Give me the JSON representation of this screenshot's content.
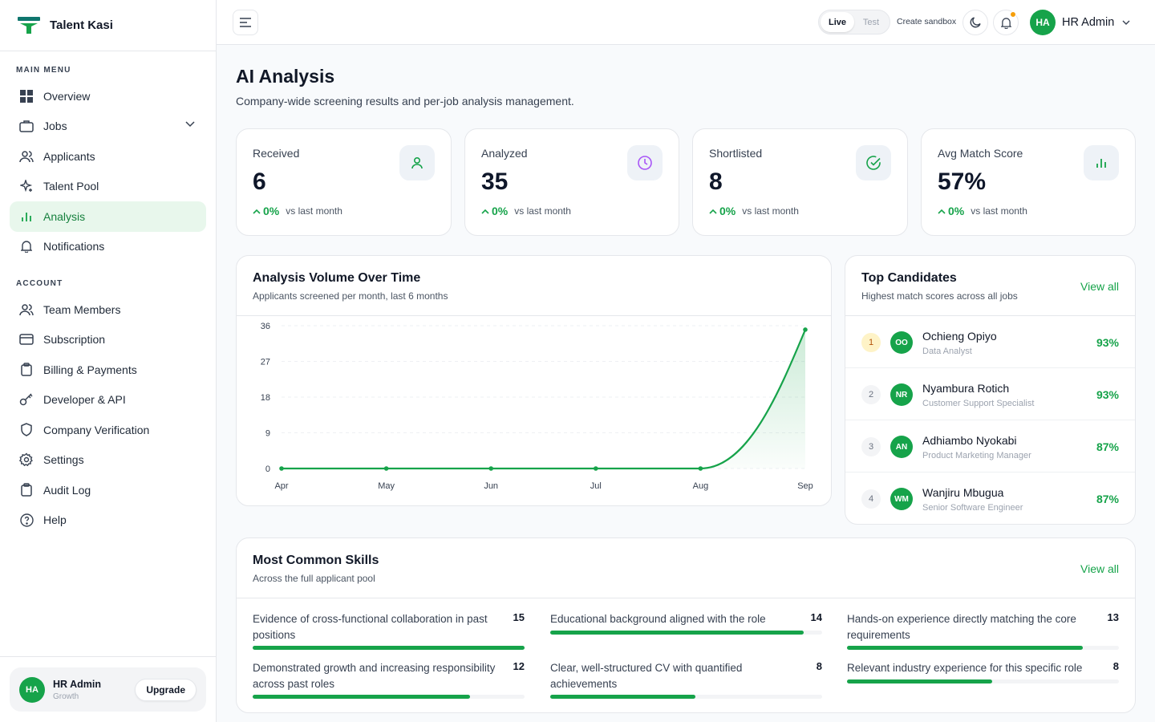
{
  "brand": {
    "name": "Talent Kasi"
  },
  "sidebar": {
    "main_menu_title": "MAIN MENU",
    "account_title": "ACCOUNT",
    "main_items": [
      {
        "label": "Overview",
        "icon": "grid-icon"
      },
      {
        "label": "Jobs",
        "icon": "briefcase-icon"
      },
      {
        "label": "Applicants",
        "icon": "users-icon"
      },
      {
        "label": "Talent Pool",
        "icon": "sparkle-icon"
      },
      {
        "label": "Analysis",
        "icon": "bar-chart-icon",
        "active": true
      },
      {
        "label": "Notifications",
        "icon": "bell-icon"
      }
    ],
    "account_items": [
      {
        "label": "Team Members",
        "icon": "team-icon"
      },
      {
        "label": "Subscription",
        "icon": "credit-card-icon"
      },
      {
        "label": "Billing & Payments",
        "icon": "clipboard-icon"
      },
      {
        "label": "Developer & API",
        "icon": "key-icon"
      },
      {
        "label": "Company Verification",
        "icon": "shield-icon"
      },
      {
        "label": "Settings",
        "icon": "gear-icon"
      },
      {
        "label": "Audit Log",
        "icon": "clipboard-icon"
      },
      {
        "label": "Help",
        "icon": "help-icon"
      }
    ],
    "user": {
      "initials": "HA",
      "name": "HR Admin",
      "plan": "Growth",
      "upgrade_label": "Upgrade"
    }
  },
  "topbar": {
    "env_live": "Live",
    "env_test": "Test",
    "sandbox_label": "Create sandbox",
    "user_initials": "HA",
    "user_name": "HR Admin"
  },
  "page": {
    "title": "AI Analysis",
    "subtitle": "Company-wide screening results and per-job analysis management."
  },
  "stats": [
    {
      "label": "Received",
      "value": "6",
      "delta": "0%",
      "delta_text": "vs last month",
      "icon": "user-icon",
      "icon_color": "#16a34a"
    },
    {
      "label": "Analyzed",
      "value": "35",
      "delta": "0%",
      "delta_text": "vs last month",
      "icon": "clock-icon",
      "icon_color": "#a855f7"
    },
    {
      "label": "Shortlisted",
      "value": "8",
      "delta": "0%",
      "delta_text": "vs last month",
      "icon": "check-circle-icon",
      "icon_color": "#16a34a"
    },
    {
      "label": "Avg Match Score",
      "value": "57%",
      "delta": "0%",
      "delta_text": "vs last month",
      "icon": "bar-chart-icon",
      "icon_color": "#16a34a"
    }
  ],
  "volume_card": {
    "title": "Analysis Volume Over Time",
    "subtitle": "Applicants screened per month, last 6 months"
  },
  "chart_data": {
    "type": "area",
    "title": "Analysis Volume Over Time",
    "subtitle": "Applicants screened per month, last 6 months",
    "x": [
      "Apr",
      "May",
      "Jun",
      "Jul",
      "Aug",
      "Sep"
    ],
    "values": [
      0,
      0,
      0,
      0,
      0,
      35
    ],
    "yticks": [
      0,
      9,
      18,
      27,
      36
    ],
    "ylim": [
      0,
      36
    ],
    "grid": true,
    "color": "#16a34a"
  },
  "top_candidates": {
    "title": "Top Candidates",
    "subtitle": "Highest match scores across all jobs",
    "view_all": "View all",
    "items": [
      {
        "rank": "1",
        "initials": "OO",
        "name": "Ochieng Opiyo",
        "role": "Data Analyst",
        "score": "93%"
      },
      {
        "rank": "2",
        "initials": "NR",
        "name": "Nyambura Rotich",
        "role": "Customer Support Specialist",
        "score": "93%"
      },
      {
        "rank": "3",
        "initials": "AN",
        "name": "Adhiambo Nyokabi",
        "role": "Product Marketing Manager",
        "score": "87%"
      },
      {
        "rank": "4",
        "initials": "WM",
        "name": "Wanjiru Mbugua",
        "role": "Senior Software Engineer",
        "score": "87%"
      }
    ]
  },
  "skills": {
    "title": "Most Common Skills",
    "subtitle": "Across the full applicant pool",
    "view_all": "View all",
    "max": 15,
    "items": [
      {
        "name": "Evidence of cross-functional collaboration in past positions",
        "count": 15
      },
      {
        "name": "Educational background aligned with the role",
        "count": 14
      },
      {
        "name": "Hands-on experience directly matching the core requirements",
        "count": 13
      },
      {
        "name": "Demonstrated growth and increasing responsibility across past roles",
        "count": 12
      },
      {
        "name": "Clear, well-structured CV with quantified achievements",
        "count": 8
      },
      {
        "name": "Relevant industry experience for this specific role",
        "count": 8
      }
    ]
  }
}
